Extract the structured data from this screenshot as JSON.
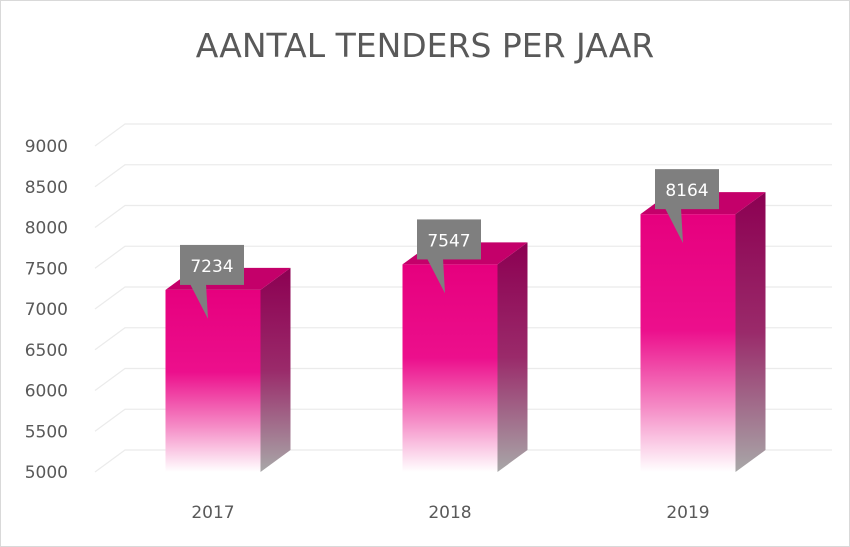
{
  "chart_data": {
    "type": "bar",
    "title": "AANTAL TENDERS PER JAAR",
    "categories": [
      "2017",
      "2018",
      "2019"
    ],
    "values": [
      7234,
      7547,
      8164
    ],
    "data_labels": [
      "7234",
      "7547",
      "8164"
    ],
    "ylim": [
      5000,
      9000
    ],
    "yticks": [
      5000,
      5500,
      6000,
      6500,
      7000,
      7500,
      8000,
      8500,
      9000
    ],
    "xlabel": "",
    "ylabel": "",
    "grid": true,
    "legend": "none",
    "style": "3d-column",
    "colors": {
      "bar_top": "#e6007e",
      "bar_mid": "#ec0f8c",
      "bar_bottom": "#ffffff",
      "bar_side": "#8c0052",
      "bar_side_bottom": "#b0b0b0",
      "bar_cap": "#c4006a",
      "callout": "#7f7f7f",
      "grid": "#ebebeb",
      "text": "#595959"
    }
  }
}
